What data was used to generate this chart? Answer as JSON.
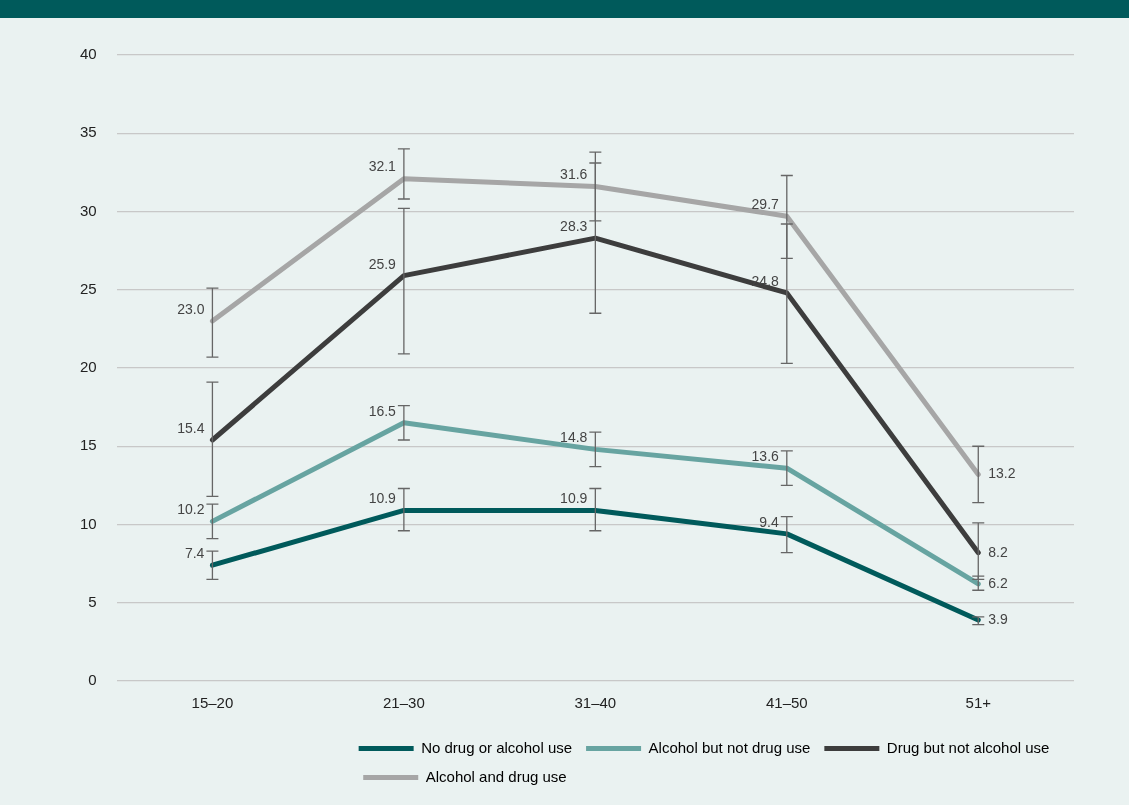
{
  "chart_data": {
    "type": "line",
    "categories": [
      "15–20",
      "21–30",
      "31–40",
      "41–50",
      "51+"
    ],
    "series": [
      {
        "name": "No drug or alcohol use",
        "color": "#005a5b",
        "values": [
          7.4,
          10.9,
          10.9,
          9.4,
          3.9
        ],
        "value_labels": [
          "7.4",
          "10.9",
          "10.9",
          "9.4",
          "3.9"
        ],
        "errors": [
          [
            6.5,
            8.3
          ],
          [
            9.6,
            12.3
          ],
          [
            9.6,
            12.3
          ],
          [
            8.2,
            10.5
          ],
          [
            3.6,
            4.1
          ]
        ]
      },
      {
        "name": "Alcohol but not drug use",
        "color": "#67a4a1",
        "values": [
          10.2,
          16.5,
          14.8,
          13.6,
          6.2
        ],
        "value_labels": [
          "10.2",
          "16.5",
          "14.8",
          "13.6",
          "6.2"
        ],
        "errors": [
          [
            9.1,
            11.3
          ],
          [
            15.4,
            17.6
          ],
          [
            13.7,
            15.9
          ],
          [
            12.5,
            14.7
          ],
          [
            5.8,
            6.7
          ]
        ]
      },
      {
        "name": "Drug but not alcohol use",
        "color": "#3d3d3d",
        "values": [
          15.4,
          25.9,
          28.3,
          24.8,
          8.2
        ],
        "value_labels": [
          "15.4",
          "25.9",
          "28.3",
          "24.8",
          "8.2"
        ],
        "errors": [
          [
            11.8,
            19.1
          ],
          [
            20.9,
            30.2
          ],
          [
            23.5,
            33.1
          ],
          [
            20.3,
            29.2
          ],
          [
            6.5,
            10.1
          ]
        ]
      },
      {
        "name": "Alcohol and drug use",
        "color": "#a6a6a6",
        "values": [
          23.0,
          32.1,
          31.6,
          29.7,
          13.2
        ],
        "value_labels": [
          "23.0",
          "32.1",
          "31.6",
          "29.7",
          "13.2"
        ],
        "errors": [
          [
            20.7,
            25.1
          ],
          [
            30.8,
            34.0
          ],
          [
            29.4,
            33.8
          ],
          [
            27.0,
            32.3
          ],
          [
            11.4,
            15.0
          ]
        ]
      }
    ],
    "ylim": [
      0,
      40
    ],
    "yticks": [
      0,
      5,
      10,
      15,
      20,
      25,
      30,
      35,
      40
    ],
    "grid": "y",
    "legend": "bottom",
    "line_style": "solid"
  }
}
